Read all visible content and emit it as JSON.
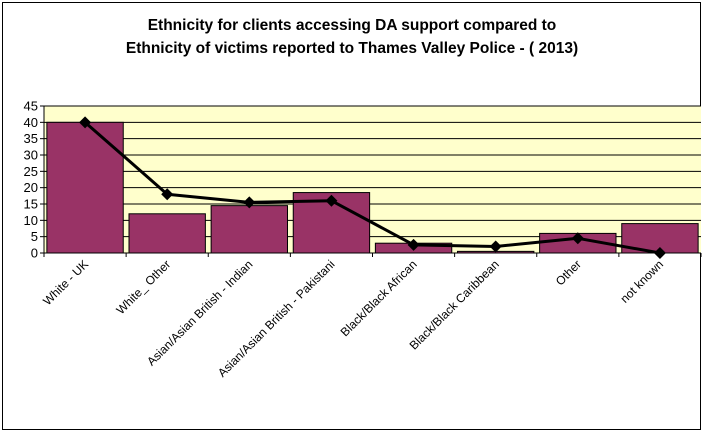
{
  "chart_data": {
    "type": "bar",
    "title_lines": [
      "Ethnicity for clients accessing DA support compared to",
      "Ethnicity of victims reported to Thames Valley Police -  ( 2013)"
    ],
    "categories": [
      "White - UK",
      "White_ Other",
      "Asian/Asian British - Indian",
      "Asian/Asian British - Pakistani",
      "Black/Black African",
      "Black/Black Caribbean",
      "Other",
      "not known"
    ],
    "series": [
      {
        "kind": "bar",
        "values": [
          40,
          12,
          14.5,
          18.5,
          3,
          0.5,
          6,
          9
        ]
      },
      {
        "kind": "line",
        "values": [
          40,
          18,
          15.5,
          16,
          2.5,
          2,
          4.5,
          0
        ]
      }
    ],
    "ylim": [
      0,
      45
    ],
    "yticks": [
      "0",
      "5",
      "10",
      "15",
      "20",
      "25",
      "30",
      "35",
      "40",
      "45"
    ],
    "xlabel": "",
    "ylabel": "",
    "grid": true,
    "colors": {
      "bar_fill": "#993366",
      "bar_edge": "#000000",
      "line": "#000000",
      "plot_background": "#FFFFCC",
      "gridline": "#000000"
    }
  }
}
